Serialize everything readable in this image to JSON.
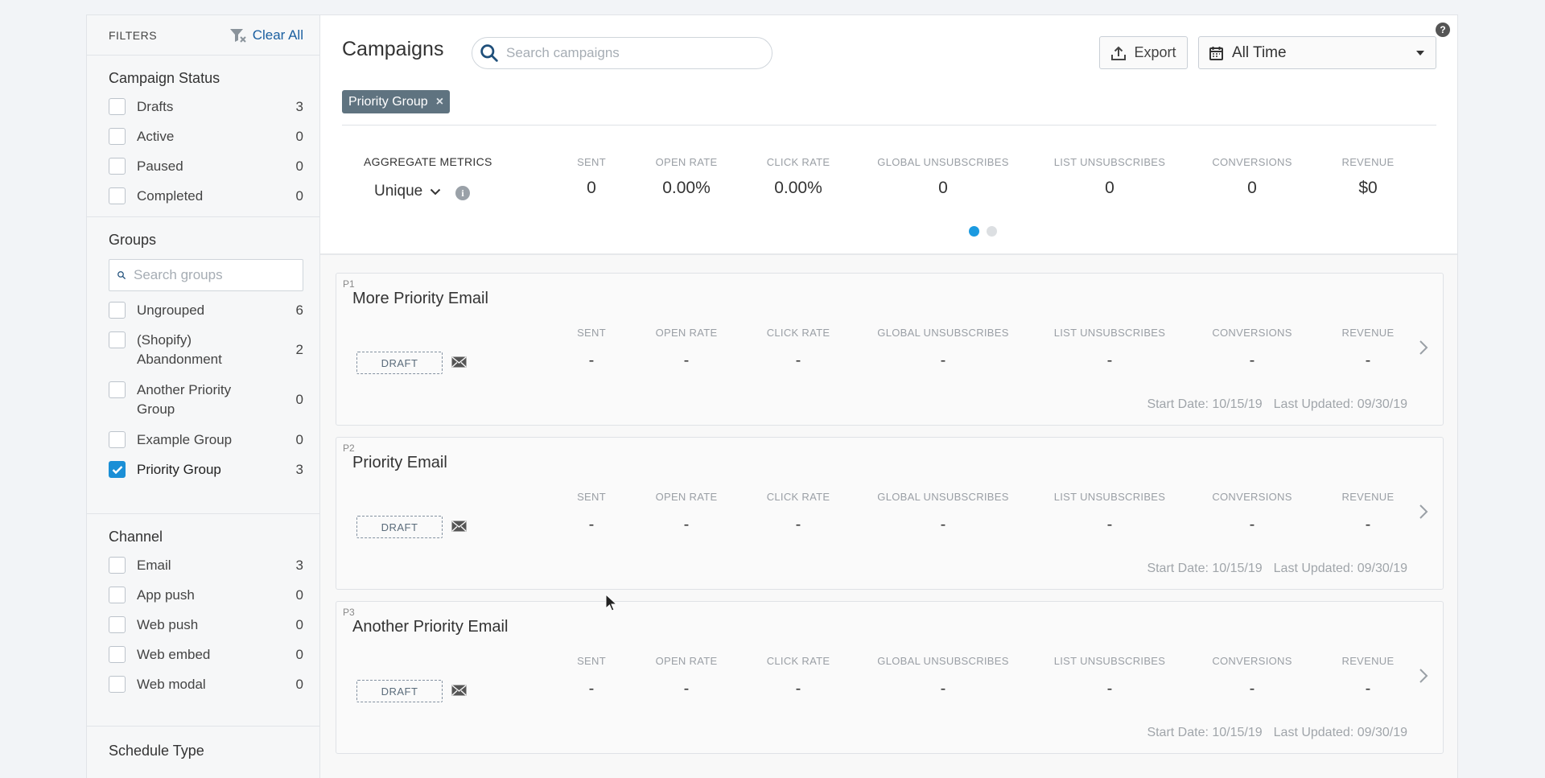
{
  "sidebar": {
    "title": "FILTERS",
    "clear_all": "Clear All",
    "campaign_status": {
      "title": "Campaign Status",
      "items": [
        {
          "label": "Drafts",
          "count": "3"
        },
        {
          "label": "Active",
          "count": "0"
        },
        {
          "label": "Paused",
          "count": "0"
        },
        {
          "label": "Completed",
          "count": "0"
        }
      ]
    },
    "groups": {
      "title": "Groups",
      "search_placeholder": "Search groups",
      "items": [
        {
          "label": "Ungrouped",
          "count": "6",
          "checked": false
        },
        {
          "label": "(Shopify) Abandonment",
          "count": "2",
          "checked": false
        },
        {
          "label": "Another Priority Group",
          "count": "0",
          "checked": false
        },
        {
          "label": "Example Group",
          "count": "0",
          "checked": false
        },
        {
          "label": "Priority Group",
          "count": "3",
          "checked": true
        }
      ]
    },
    "channel": {
      "title": "Channel",
      "items": [
        {
          "label": "Email",
          "count": "3"
        },
        {
          "label": "App push",
          "count": "0"
        },
        {
          "label": "Web push",
          "count": "0"
        },
        {
          "label": "Web embed",
          "count": "0"
        },
        {
          "label": "Web modal",
          "count": "0"
        }
      ]
    },
    "schedule_type": {
      "title": "Schedule Type"
    }
  },
  "header": {
    "title": "Campaigns",
    "search_placeholder": "Search campaigns",
    "export_label": "Export",
    "date_range": "All Time",
    "help": "?",
    "active_filter": "Priority Group",
    "active_filter_remove": "×"
  },
  "aggregate": {
    "title": "AGGREGATE METRICS",
    "mode": "Unique",
    "metrics": [
      {
        "key": "SENT",
        "value": "0"
      },
      {
        "key": "OPEN RATE",
        "value": "0.00%"
      },
      {
        "key": "CLICK RATE",
        "value": "0.00%"
      },
      {
        "key": "GLOBAL UNSUBSCRIBES",
        "value": "0"
      },
      {
        "key": "LIST UNSUBSCRIBES",
        "value": "0"
      },
      {
        "key": "CONVERSIONS",
        "value": "0"
      },
      {
        "key": "REVENUE",
        "value": "$0"
      }
    ],
    "pager_active": 1,
    "pager_total": 2
  },
  "campaigns": [
    {
      "priority": "P1",
      "name": "More Priority Email",
      "status": "DRAFT",
      "channel_icon": "mail-icon",
      "metrics": [
        {
          "key": "SENT",
          "value": "-"
        },
        {
          "key": "OPEN RATE",
          "value": "-"
        },
        {
          "key": "CLICK RATE",
          "value": "-"
        },
        {
          "key": "GLOBAL UNSUBSCRIBES",
          "value": "-"
        },
        {
          "key": "LIST UNSUBSCRIBES",
          "value": "-"
        },
        {
          "key": "CONVERSIONS",
          "value": "-"
        },
        {
          "key": "REVENUE",
          "value": "-"
        }
      ],
      "start_date": "Start Date: 10/15/19",
      "last_updated": "Last Updated: 09/30/19"
    },
    {
      "priority": "P2",
      "name": "Priority Email",
      "status": "DRAFT",
      "channel_icon": "mail-icon",
      "metrics": [
        {
          "key": "SENT",
          "value": "-"
        },
        {
          "key": "OPEN RATE",
          "value": "-"
        },
        {
          "key": "CLICK RATE",
          "value": "-"
        },
        {
          "key": "GLOBAL UNSUBSCRIBES",
          "value": "-"
        },
        {
          "key": "LIST UNSUBSCRIBES",
          "value": "-"
        },
        {
          "key": "CONVERSIONS",
          "value": "-"
        },
        {
          "key": "REVENUE",
          "value": "-"
        }
      ],
      "start_date": "Start Date: 10/15/19",
      "last_updated": "Last Updated: 09/30/19"
    },
    {
      "priority": "P3",
      "name": "Another Priority Email",
      "status": "DRAFT",
      "channel_icon": "mail-icon",
      "metrics": [
        {
          "key": "SENT",
          "value": "-"
        },
        {
          "key": "OPEN RATE",
          "value": "-"
        },
        {
          "key": "CLICK RATE",
          "value": "-"
        },
        {
          "key": "GLOBAL UNSUBSCRIBES",
          "value": "-"
        },
        {
          "key": "LIST UNSUBSCRIBES",
          "value": "-"
        },
        {
          "key": "CONVERSIONS",
          "value": "-"
        },
        {
          "key": "REVENUE",
          "value": "-"
        }
      ],
      "start_date": "Start Date: 10/15/19",
      "last_updated": "Last Updated: 09/30/19"
    }
  ],
  "colors": {
    "accent": "#1b8fd6",
    "link": "#1a5fa0",
    "chip": "#5f7380",
    "pager_active": "#1b9ae0"
  }
}
